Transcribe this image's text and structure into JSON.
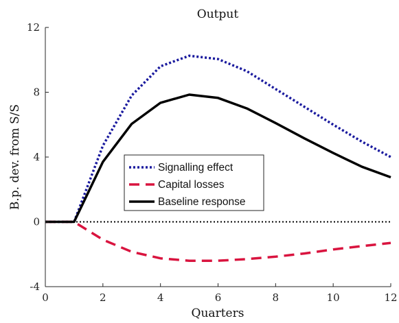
{
  "chart_data": {
    "type": "line",
    "title": "Output",
    "xlabel": "Quarters",
    "ylabel": "B.p. dev. from S/S",
    "xlim": [
      0,
      12
    ],
    "ylim": [
      -4,
      12
    ],
    "xticks": [
      0,
      2,
      4,
      6,
      8,
      10,
      12
    ],
    "yticks": [
      -4,
      0,
      4,
      8,
      12
    ],
    "grid": false,
    "legend_position": "center",
    "zero_line": {
      "y": 0,
      "style": "dotted",
      "color": "#000000"
    },
    "x": [
      0,
      1,
      2,
      3,
      4,
      5,
      6,
      7,
      8,
      9,
      10,
      11,
      12
    ],
    "series": [
      {
        "name": "Signalling effect",
        "color": "#1a1a9e",
        "style": "dotted",
        "values": [
          0,
          0,
          4.7,
          7.8,
          9.6,
          10.25,
          10.05,
          9.3,
          8.2,
          7.1,
          6.0,
          4.95,
          4.0
        ]
      },
      {
        "name": "Capital losses",
        "color": "#d9143f",
        "style": "dashed",
        "values": [
          0,
          0,
          -1.1,
          -1.85,
          -2.25,
          -2.4,
          -2.4,
          -2.3,
          -2.15,
          -1.95,
          -1.7,
          -1.5,
          -1.3
        ]
      },
      {
        "name": "Baseline response",
        "color": "#000000",
        "style": "solid",
        "values": [
          0,
          0,
          3.7,
          6.05,
          7.35,
          7.85,
          7.65,
          7.0,
          6.1,
          5.15,
          4.25,
          3.4,
          2.75
        ]
      }
    ]
  }
}
